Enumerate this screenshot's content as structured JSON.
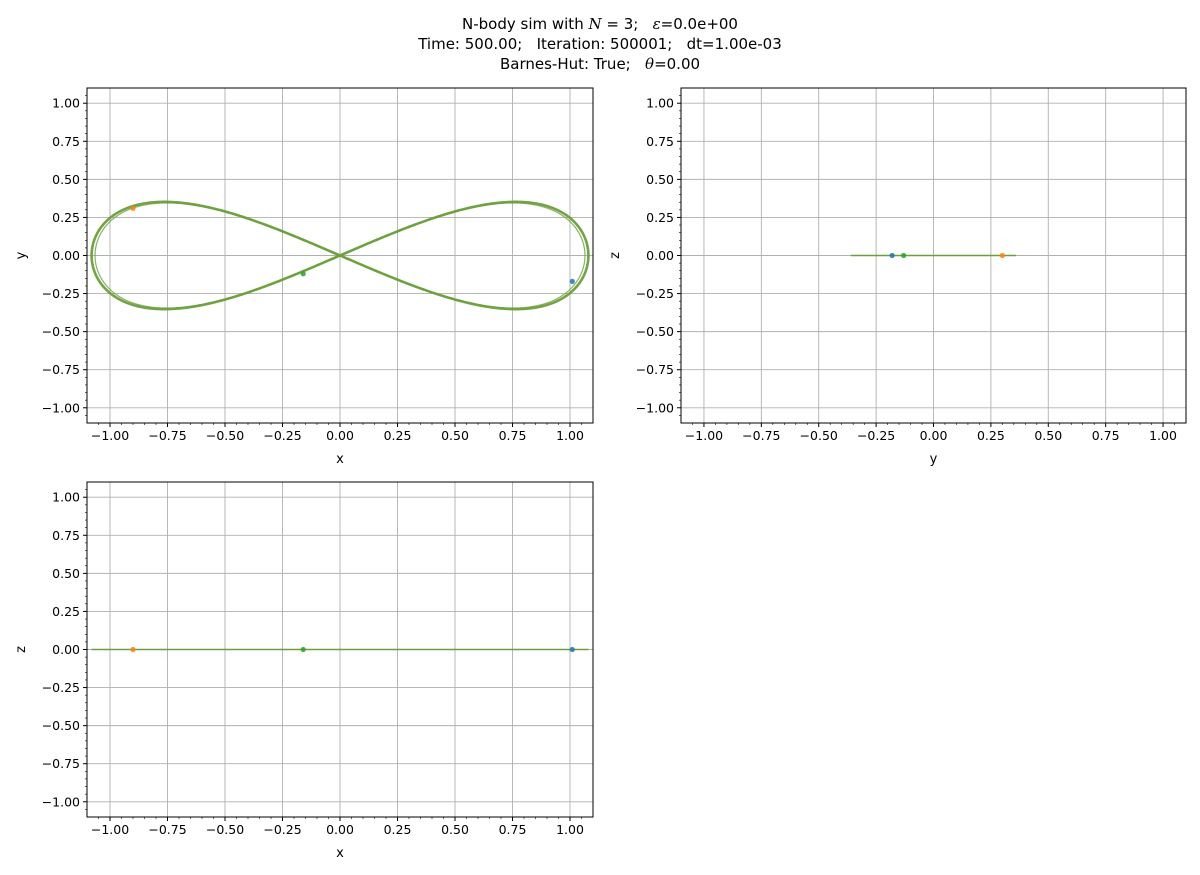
{
  "title": {
    "line1": {
      "prefix": "N-body sim with ",
      "n_symbol": "N",
      "n_value": " = 3;   ",
      "eps_symbol": "ε",
      "eps_value": "=0.0e+00"
    },
    "line2": "Time: 500.00;   Iteration: 500001;   dt=1.00e-03",
    "line3": {
      "prefix": "Barnes-Hut: True;   ",
      "theta_symbol": "θ",
      "theta_value": "=0.00"
    }
  },
  "colors": {
    "body_1": "#1f77b4",
    "body_2": "#ff7f0e",
    "body_3": "#2ca02c",
    "grid": "#b0b0b0",
    "axes": "#000000"
  },
  "chart_data": [
    {
      "type": "line",
      "panel": "xy",
      "xlabel": "x",
      "ylabel": "y",
      "xlim": [
        -1.1,
        1.1
      ],
      "ylim": [
        -1.1,
        1.1
      ],
      "xticks": [
        "−1.00",
        "−0.75",
        "−0.50",
        "−0.25",
        "0.00",
        "0.25",
        "0.50",
        "0.75",
        "1.00"
      ],
      "yticks": [
        "−1.00",
        "−0.75",
        "−0.50",
        "−0.25",
        "0.00",
        "0.25",
        "0.50",
        "0.75",
        "1.00"
      ],
      "grid": true,
      "trajectory": "figure-eight",
      "bodies": [
        {
          "x": 1.01,
          "y": -0.17
        },
        {
          "x": -0.9,
          "y": 0.31
        },
        {
          "x": -0.16,
          "y": -0.12
        }
      ]
    },
    {
      "type": "line",
      "panel": "yz",
      "xlabel": "y",
      "ylabel": "z",
      "xlim": [
        -1.1,
        1.1
      ],
      "ylim": [
        -1.1,
        1.1
      ],
      "xticks": [
        "−1.00",
        "−0.75",
        "−0.50",
        "−0.25",
        "0.00",
        "0.25",
        "0.50",
        "0.75",
        "1.00"
      ],
      "yticks": [
        "−1.00",
        "−0.75",
        "−0.50",
        "−0.25",
        "0.00",
        "0.25",
        "0.50",
        "0.75",
        "1.00"
      ],
      "grid": true,
      "trajectory_range": [
        -0.36,
        0.36
      ],
      "bodies": [
        {
          "x": -0.18,
          "y": 0.0
        },
        {
          "x": 0.3,
          "y": 0.0
        },
        {
          "x": -0.13,
          "y": 0.0
        }
      ]
    },
    {
      "type": "line",
      "panel": "xz",
      "xlabel": "x",
      "ylabel": "z",
      "xlim": [
        -1.1,
        1.1
      ],
      "ylim": [
        -1.1,
        1.1
      ],
      "xticks": [
        "−1.00",
        "−0.75",
        "−0.50",
        "−0.25",
        "0.00",
        "0.25",
        "0.50",
        "0.75",
        "1.00"
      ],
      "yticks": [
        "−1.00",
        "−0.75",
        "−0.50",
        "−0.25",
        "0.00",
        "0.25",
        "0.50",
        "0.75",
        "1.00"
      ],
      "grid": true,
      "trajectory_range": [
        -1.08,
        1.08
      ],
      "bodies": [
        {
          "x": 1.01,
          "y": 0.0
        },
        {
          "x": -0.9,
          "y": 0.0
        },
        {
          "x": -0.16,
          "y": 0.0
        }
      ]
    }
  ]
}
